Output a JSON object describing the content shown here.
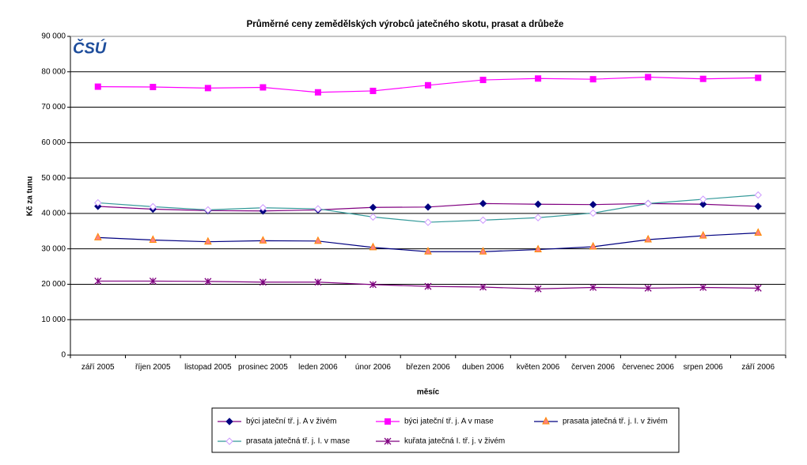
{
  "chart_data": {
    "type": "line",
    "title": "Průměrné ceny zemědělských výrobců jatečného skotu, prasat a drůbeže",
    "logo": "ČSÚ",
    "y_label": "Kč za tunu",
    "x_label": "měsíc",
    "categories": [
      "září 2005",
      "říjen 2005",
      "listopad 2005",
      "prosinec 2005",
      "leden 2006",
      "únor 2006",
      "březen 2006",
      "duben 2006",
      "květen 2006",
      "červen 2006",
      "červenec 2006",
      "srpen 2006",
      "září 2006"
    ],
    "ylim": [
      0,
      90000
    ],
    "yticks": [
      0,
      {
        "value": 10000,
        "label": "10 000"
      },
      {
        "value": 20000,
        "label": "20 000"
      },
      {
        "value": 30000,
        "label": "30 000"
      },
      {
        "value": 40000,
        "label": "40 000"
      },
      {
        "value": 50000,
        "label": "50 000"
      },
      {
        "value": 60000,
        "label": "60 000"
      },
      {
        "value": 70000,
        "label": "70 000"
      },
      {
        "value": 80000,
        "label": "80 000"
      },
      {
        "value": 90000,
        "label": "90 000"
      }
    ],
    "grid": true,
    "legend": "bottom",
    "series": [
      {
        "name": "býci jateční tř. j. A v živém",
        "color": "#800080",
        "marker_color": "#000080",
        "marker": "diamond",
        "values": [
          42000,
          41200,
          40800,
          40700,
          41000,
          41700,
          41800,
          42800,
          42600,
          42500,
          42800,
          42600,
          42000
        ]
      },
      {
        "name": "býci jateční tř. j. A v mase",
        "color": "#ff00ff",
        "marker_color": "#ff00ff",
        "marker": "square",
        "values": [
          75800,
          75700,
          75400,
          75600,
          74200,
          74600,
          76200,
          77700,
          78100,
          77900,
          78500,
          78000,
          78300
        ]
      },
      {
        "name": "prasata jatečná tř. j. I. v živém",
        "color": "#000080",
        "marker_color": "#ff8080",
        "marker": "triangle",
        "values": [
          33200,
          32500,
          32000,
          32300,
          32200,
          30400,
          29200,
          29200,
          29800,
          30600,
          32600,
          33700,
          34500
        ]
      },
      {
        "name": "prasata jatečná tř. j. I. v mase",
        "color": "#339999",
        "marker_color": "#cc99ff",
        "marker": "diamond-open",
        "values": [
          43000,
          41900,
          41000,
          41600,
          41300,
          39000,
          37500,
          38100,
          38800,
          40100,
          42800,
          44000,
          45200
        ]
      },
      {
        "name": "kuřata jatečná I. tř. j. v živém",
        "color": "#800080",
        "marker_color": "#800080",
        "marker": "star",
        "values": [
          20900,
          20900,
          20800,
          20600,
          20600,
          19900,
          19400,
          19200,
          18700,
          19100,
          18900,
          19100,
          18900
        ]
      }
    ]
  }
}
